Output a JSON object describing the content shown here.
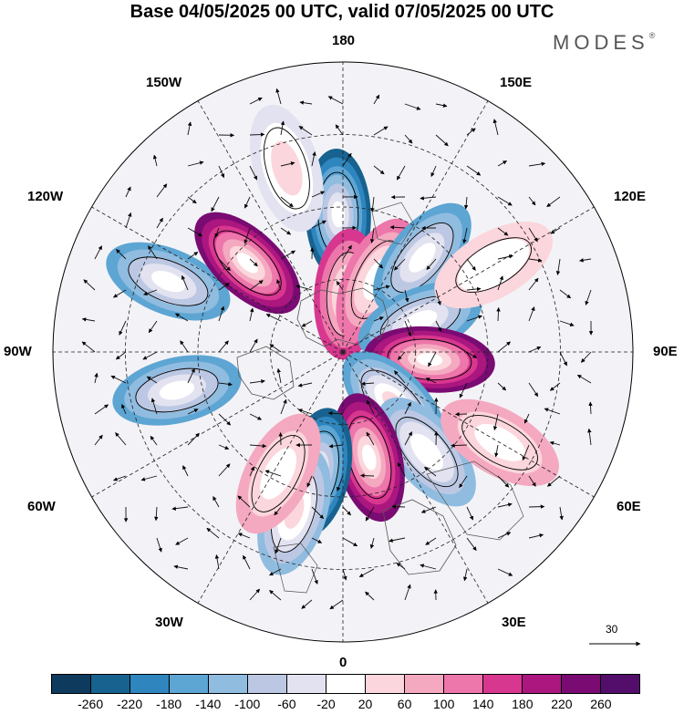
{
  "title": "Base 04/05/2025 00 UTC, valid 07/05/2025 00 UTC",
  "brand": {
    "name": "MODES",
    "mark": "®"
  },
  "longitude_labels": {
    "top": "180",
    "bottom": "0",
    "left": "90W",
    "right": "90E",
    "w150": "150W",
    "e150": "150E",
    "w120": "120W",
    "e120": "120E",
    "w60": "60W",
    "e60": "60E",
    "w30": "30W",
    "e30": "30E"
  },
  "scale_arrow_value": "30",
  "colorbar": {
    "colors": [
      "#0e3a5e",
      "#17628f",
      "#2f86be",
      "#5da5d3",
      "#90bce0",
      "#bcc8e3",
      "#e2e2f0",
      "#ffffff",
      "#fbd6dc",
      "#f4a9c0",
      "#ed76aa",
      "#d8378f",
      "#ab177f",
      "#7a0b72",
      "#520e6a"
    ],
    "ticks": [
      "-260",
      "-220",
      "-180",
      "-140",
      "-100",
      "-60",
      "-20",
      "20",
      "60",
      "100",
      "140",
      "180",
      "220",
      "260"
    ]
  },
  "anomaly_centers": [
    {
      "lon": -178,
      "colat": 38,
      "value": -240
    },
    {
      "lon": 176,
      "colat": 16,
      "value": 150
    },
    {
      "lon": 155,
      "colat": 22,
      "value": 120
    },
    {
      "lon": 140,
      "colat": 34,
      "value": -160
    },
    {
      "lon": 112,
      "colat": 23,
      "value": -150
    },
    {
      "lon": 85,
      "colat": 24,
      "value": 250
    },
    {
      "lon": 45,
      "colat": 20,
      "value": -180
    },
    {
      "lon": 40,
      "colat": 36,
      "value": -120
    },
    {
      "lon": 14,
      "colat": 30,
      "value": 240
    },
    {
      "lon": -12,
      "colat": 34,
      "value": -230
    },
    {
      "lon": -17,
      "colat": 46,
      "value": -140
    },
    {
      "lon": -77,
      "colat": 47,
      "value": -160
    },
    {
      "lon": -112,
      "colat": 52,
      "value": -150
    },
    {
      "lon": -133,
      "colat": 36,
      "value": 250
    },
    {
      "lon": -163,
      "colat": 53,
      "value": -60
    },
    {
      "lon": -28,
      "colat": 38,
      "value": 80
    },
    {
      "lon": 60,
      "colat": 50,
      "value": 60
    },
    {
      "lon": 120,
      "colat": 48,
      "value": 40
    }
  ]
}
